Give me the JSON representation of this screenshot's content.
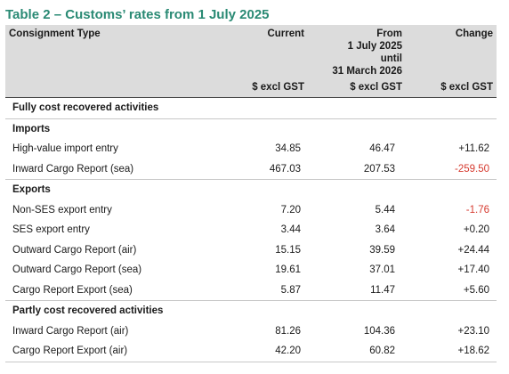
{
  "title": "Table 2 – Customs’ rates from 1 July 2025",
  "headers": {
    "col1": "Consignment Type",
    "col2": "Current",
    "col3_line1": "From",
    "col3_line2": "1 July 2025",
    "col3_line3": "until",
    "col3_line4": "31 March 2026",
    "col4": "Change",
    "unit_col2": "$ excl GST",
    "unit_col3": "$ excl GST",
    "unit_col4": "$ excl GST"
  },
  "sections": {
    "fully": "Fully cost recovered activities",
    "imports": "Imports",
    "exports": "Exports",
    "partly": "Partly cost recovered activities"
  },
  "rows": [
    {
      "label": "High-value import entry",
      "current": "34.85",
      "new": "46.47",
      "change": "+11.62"
    },
    {
      "label": "Inward Cargo Report (sea)",
      "current": "467.03",
      "new": "207.53",
      "change": "-259.50"
    },
    {
      "label": "Non-SES export entry",
      "current": "7.20",
      "new": "5.44",
      "change": "-1.76"
    },
    {
      "label": "SES export entry",
      "current": "3.44",
      "new": "3.64",
      "change": "+0.20"
    },
    {
      "label": "Outward Cargo Report (air)",
      "current": "15.15",
      "new": "39.59",
      "change": "+24.44"
    },
    {
      "label": "Outward Cargo Report (sea)",
      "current": "19.61",
      "new": "37.01",
      "change": "+17.40"
    },
    {
      "label": "Cargo Report Export (sea)",
      "current": "5.87",
      "new": "11.47",
      "change": "+5.60"
    },
    {
      "label": "Inward Cargo Report (air)",
      "current": "81.26",
      "new": "104.36",
      "change": "+23.10"
    },
    {
      "label": "Cargo Report Export (air)",
      "current": "42.20",
      "new": "60.82",
      "change": "+18.62"
    }
  ],
  "colors": {
    "title": "#2a8a74",
    "negative_change": "#d63a2f",
    "header_background": "#dcdcdc"
  }
}
